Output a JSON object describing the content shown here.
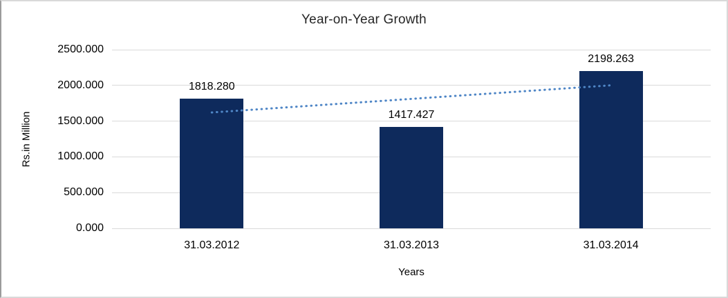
{
  "window": {
    "background": "#ffffff",
    "frame_border_color": "#d9d9d9",
    "frame_border_left_color": "#9b9b9b"
  },
  "chart_data": {
    "type": "bar",
    "title": "Year-on-Year Growth",
    "xlabel": "Years",
    "ylabel": "Rs.in Million",
    "categories": [
      "31.03.2012",
      "31.03.2013",
      "31.03.2014"
    ],
    "values": [
      1818.28,
      1417.427,
      2198.263
    ],
    "value_labels": [
      "1818.280",
      "1417.427",
      "2198.263"
    ],
    "ylim": [
      0,
      2500
    ],
    "yticks": [
      0,
      500,
      1000,
      1500,
      2000,
      2500
    ],
    "ytick_labels": [
      "0.000",
      "500.000",
      "1000.000",
      "1500.000",
      "2000.000",
      "2500.000"
    ],
    "grid": true,
    "legend": false,
    "bar_color": "#0e2a5c",
    "gridline_color": "#d9d9d9",
    "text_color": "#000000",
    "trendline": {
      "type": "linear",
      "style": "dotted",
      "color": "#4f86c6"
    }
  }
}
